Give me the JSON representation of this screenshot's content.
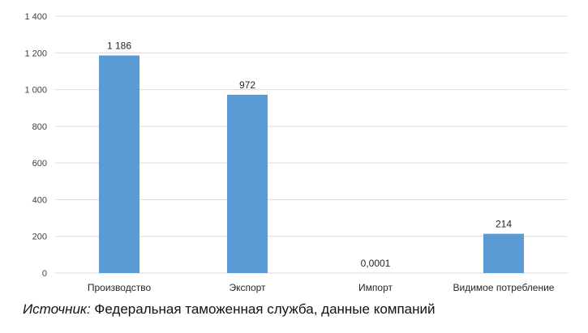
{
  "chart_data": {
    "type": "bar",
    "categories": [
      "Производство",
      "Экспорт",
      "Импорт",
      "Видимое потребление"
    ],
    "values": [
      1186,
      972,
      0.0001,
      214
    ],
    "data_labels": [
      "1 186",
      "972",
      "0,0001",
      "214"
    ],
    "ylim": [
      0,
      1400
    ],
    "yticks": [
      0,
      200,
      400,
      600,
      800,
      1000,
      1200,
      1400
    ],
    "ytick_labels": [
      "0",
      "200",
      "400",
      "600",
      "800",
      "1 000",
      "1 200",
      "1 400"
    ],
    "grid": true,
    "bar_color": "#5b9bd5",
    "grid_color": "#d9d9d9"
  },
  "source": {
    "label": "Источник:",
    "text": " Федеральная таможенная служба, данные компаний"
  }
}
